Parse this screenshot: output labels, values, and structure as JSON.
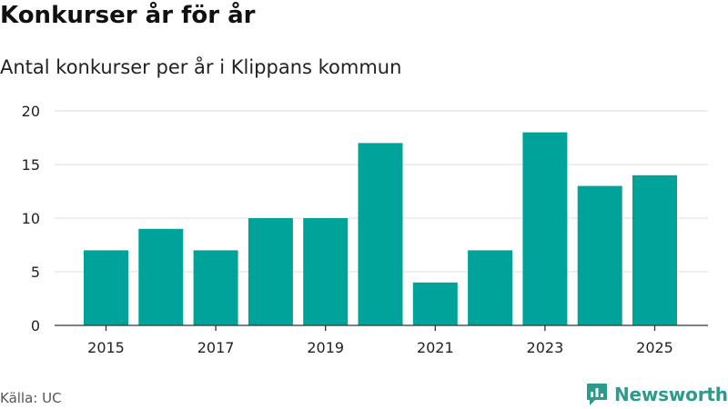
{
  "header": {
    "title": "Konkurser år för år",
    "subtitle": "Antal konkurser per år i Klippans kommun"
  },
  "footer": {
    "source": "Källa: UC",
    "brand": "Newsworthy"
  },
  "colors": {
    "bar": "#00a39a",
    "brand": "#2d9a8c",
    "grid": "#dddddd",
    "axis": "#333333"
  },
  "chart_data": {
    "type": "bar",
    "title": "Konkurser år för år",
    "subtitle": "Antal konkurser per år i Klippans kommun",
    "xlabel": "",
    "ylabel": "",
    "categories": [
      2015,
      2016,
      2017,
      2018,
      2019,
      2020,
      2021,
      2022,
      2023,
      2024,
      2025
    ],
    "values": [
      7,
      9,
      7,
      10,
      10,
      17,
      4,
      7,
      18,
      13,
      14
    ],
    "x_tick_labels": [
      "2015",
      "2017",
      "2019",
      "2021",
      "2023",
      "2025"
    ],
    "y_ticks": [
      0,
      5,
      10,
      15,
      20
    ],
    "ylim": [
      0,
      20
    ],
    "grid": true,
    "legend": "none"
  }
}
